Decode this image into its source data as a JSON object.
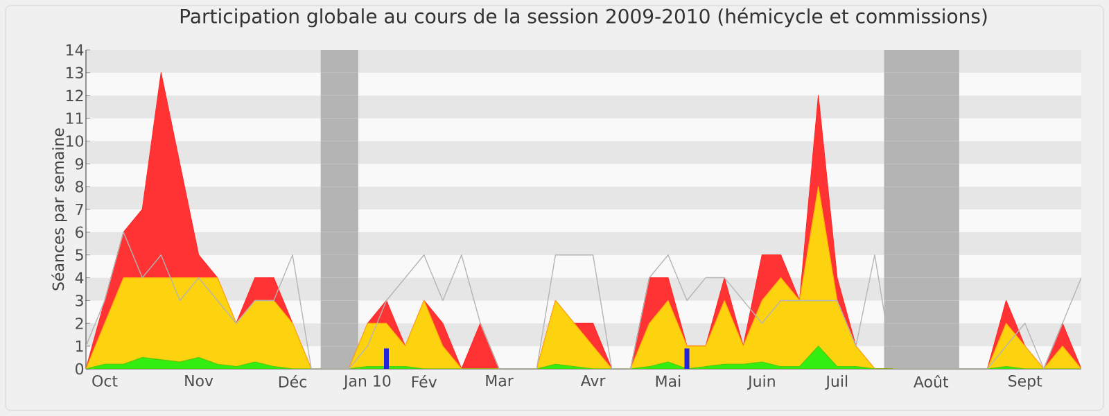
{
  "chart_data": {
    "type": "area",
    "title": "Participation globale au cours de la session 2009-2010 (hémicycle et commissions)",
    "ylabel": "Séances par semaine",
    "categories": [
      null,
      "Oct",
      null,
      null,
      null,
      null,
      "Nov",
      null,
      null,
      null,
      null,
      "Déc",
      null,
      null,
      null,
      "Jan 10",
      null,
      null,
      "Fév",
      null,
      null,
      null,
      "Mar",
      null,
      null,
      null,
      null,
      "Avr",
      null,
      null,
      null,
      "Mai",
      null,
      null,
      null,
      null,
      "Juin",
      null,
      null,
      null,
      "Juil",
      null,
      null,
      null,
      null,
      "Août",
      null,
      null,
      null,
      null,
      "Sept",
      null,
      null,
      null
    ],
    "ylim": [
      0,
      14
    ],
    "yticks": [
      0,
      1,
      2,
      3,
      4,
      5,
      6,
      7,
      8,
      9,
      10,
      11,
      12,
      13,
      14
    ],
    "series": [
      {
        "type": "line",
        "color": "#b4b4b4",
        "values": [
          1,
          3,
          6,
          4,
          5,
          3,
          4,
          3,
          2,
          3,
          3,
          5,
          0,
          0,
          0,
          1,
          3,
          4,
          5,
          3,
          5,
          2,
          0,
          0,
          0,
          5,
          5,
          5,
          0,
          0,
          4,
          5,
          3,
          4,
          4,
          3,
          2,
          3,
          3,
          3,
          3,
          1,
          5,
          0,
          0,
          0,
          0,
          0,
          0,
          1,
          2,
          0,
          2,
          4
        ]
      },
      {
        "color": "#ff3333",
        "values": [
          0,
          3,
          6,
          7,
          13,
          9,
          5,
          4,
          2,
          4,
          4,
          2,
          0,
          0,
          0,
          2,
          3,
          1,
          3,
          2,
          0,
          2,
          0,
          0,
          0,
          3,
          2,
          2,
          0,
          0,
          4,
          4,
          1,
          1,
          4,
          1,
          5,
          5,
          3,
          12,
          4,
          1,
          0,
          0,
          0,
          0,
          0,
          0,
          0,
          3,
          1,
          0,
          2,
          0
        ]
      },
      {
        "color": "#fdd20e",
        "values": [
          0,
          2,
          4,
          4,
          4,
          4,
          4,
          4,
          2,
          3,
          3,
          2,
          0,
          0,
          0,
          2,
          2,
          1,
          3,
          1,
          0,
          0,
          0,
          0,
          0,
          3,
          2,
          1,
          0,
          0,
          2,
          3,
          1,
          1,
          3,
          1,
          3,
          4,
          3,
          8,
          3,
          1,
          0,
          0,
          0,
          0,
          0,
          0,
          0,
          2,
          1,
          0,
          1,
          0
        ]
      },
      {
        "color": "#33ee11",
        "values": [
          0,
          0.2,
          0.2,
          0.5,
          0.4,
          0.3,
          0.5,
          0.2,
          0.1,
          0.3,
          0.1,
          0,
          0,
          0,
          0,
          0.1,
          0.1,
          0.1,
          0,
          0,
          0,
          0,
          0,
          0,
          0,
          0.2,
          0.1,
          0,
          0,
          0,
          0.1,
          0.3,
          0,
          0.1,
          0.2,
          0.2,
          0.3,
          0.1,
          0.1,
          1,
          0.1,
          0.1,
          0,
          0,
          0,
          0,
          0,
          0,
          0,
          0.1,
          0,
          0,
          0,
          0
        ]
      },
      {
        "type": "bar",
        "color": "#2222dd",
        "values": [
          null,
          null,
          null,
          null,
          null,
          null,
          null,
          null,
          null,
          null,
          null,
          null,
          null,
          null,
          null,
          null,
          0.9,
          null,
          null,
          null,
          null,
          null,
          null,
          null,
          null,
          null,
          null,
          null,
          null,
          null,
          null,
          null,
          0.9,
          null,
          null,
          null,
          null,
          null,
          null,
          null,
          null,
          null,
          null,
          null,
          null,
          null,
          null,
          null,
          null,
          null,
          null,
          null,
          null,
          null
        ]
      }
    ]
  }
}
